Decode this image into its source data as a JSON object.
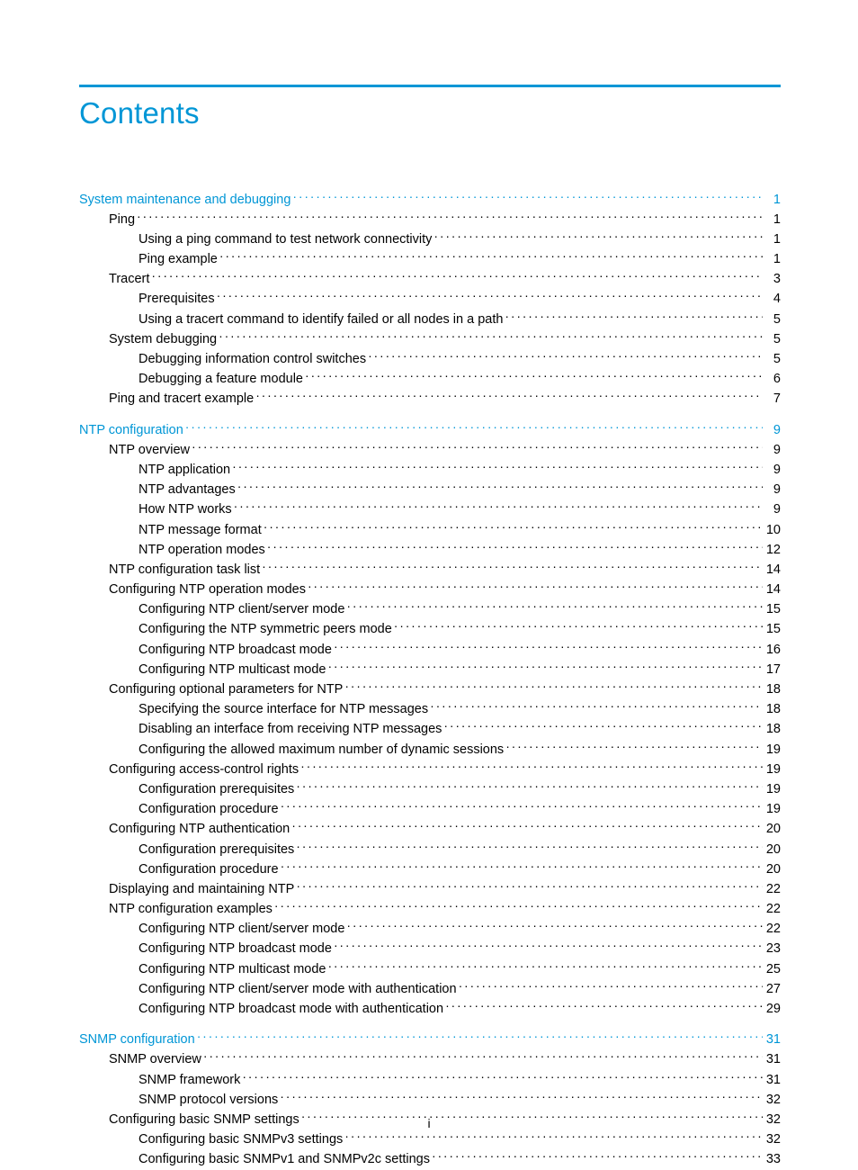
{
  "title": "Contents",
  "footer_page": "i",
  "top_rule_color": "#0096d6",
  "link_color": "#0096d6",
  "text_color": "#000000",
  "background_color": "#ffffff",
  "title_fontsize": 33,
  "body_fontsize": 14.5,
  "sections": [
    {
      "heading": {
        "label": "System maintenance and debugging",
        "page": "1",
        "link": true
      },
      "entries": [
        {
          "indent": 1,
          "label": "Ping",
          "page": "1"
        },
        {
          "indent": 2,
          "label": "Using a ping command to test network connectivity",
          "page": "1"
        },
        {
          "indent": 2,
          "label": "Ping example",
          "page": "1"
        },
        {
          "indent": 1,
          "label": "Tracert",
          "page": "3"
        },
        {
          "indent": 2,
          "label": "Prerequisites",
          "page": "4"
        },
        {
          "indent": 2,
          "label": "Using a tracert command to identify failed or all nodes in a path",
          "page": "5"
        },
        {
          "indent": 1,
          "label": "System debugging",
          "page": "5"
        },
        {
          "indent": 2,
          "label": "Debugging information control switches",
          "page": "5"
        },
        {
          "indent": 2,
          "label": "Debugging a feature module",
          "page": "6"
        },
        {
          "indent": 1,
          "label": "Ping and tracert example",
          "page": "7"
        }
      ]
    },
    {
      "heading": {
        "label": "NTP configuration",
        "page": "9",
        "link": true
      },
      "entries": [
        {
          "indent": 1,
          "label": "NTP overview",
          "page": "9"
        },
        {
          "indent": 2,
          "label": "NTP application",
          "page": "9"
        },
        {
          "indent": 2,
          "label": "NTP advantages",
          "page": "9"
        },
        {
          "indent": 2,
          "label": "How NTP works",
          "page": "9"
        },
        {
          "indent": 2,
          "label": "NTP message format",
          "page": "10"
        },
        {
          "indent": 2,
          "label": "NTP operation modes",
          "page": "12"
        },
        {
          "indent": 1,
          "label": "NTP configuration task list",
          "page": "14"
        },
        {
          "indent": 1,
          "label": "Configuring NTP operation modes",
          "page": "14"
        },
        {
          "indent": 2,
          "label": "Configuring NTP client/server mode",
          "page": "15"
        },
        {
          "indent": 2,
          "label": "Configuring the NTP symmetric peers mode",
          "page": "15"
        },
        {
          "indent": 2,
          "label": "Configuring NTP broadcast mode",
          "page": "16"
        },
        {
          "indent": 2,
          "label": "Configuring NTP multicast mode",
          "page": "17"
        },
        {
          "indent": 1,
          "label": "Configuring optional parameters for NTP",
          "page": "18"
        },
        {
          "indent": 2,
          "label": "Specifying the source interface for NTP messages",
          "page": "18"
        },
        {
          "indent": 2,
          "label": "Disabling an interface from receiving NTP messages",
          "page": "18"
        },
        {
          "indent": 2,
          "label": "Configuring the allowed maximum number of dynamic sessions",
          "page": "19"
        },
        {
          "indent": 1,
          "label": "Configuring access-control rights",
          "page": "19"
        },
        {
          "indent": 2,
          "label": "Configuration prerequisites",
          "page": "19"
        },
        {
          "indent": 2,
          "label": "Configuration procedure",
          "page": "19"
        },
        {
          "indent": 1,
          "label": "Configuring NTP authentication",
          "page": "20"
        },
        {
          "indent": 2,
          "label": "Configuration prerequisites",
          "page": "20"
        },
        {
          "indent": 2,
          "label": "Configuration procedure",
          "page": "20"
        },
        {
          "indent": 1,
          "label": "Displaying and maintaining NTP",
          "page": "22"
        },
        {
          "indent": 1,
          "label": "NTP configuration examples",
          "page": "22"
        },
        {
          "indent": 2,
          "label": "Configuring NTP client/server mode",
          "page": "22"
        },
        {
          "indent": 2,
          "label": "Configuring NTP broadcast mode",
          "page": "23"
        },
        {
          "indent": 2,
          "label": "Configuring NTP multicast mode",
          "page": "25"
        },
        {
          "indent": 2,
          "label": "Configuring NTP client/server mode with authentication",
          "page": "27"
        },
        {
          "indent": 2,
          "label": "Configuring NTP broadcast mode with authentication",
          "page": "29"
        }
      ]
    },
    {
      "heading": {
        "label": "SNMP configuration",
        "page": "31",
        "link": true
      },
      "entries": [
        {
          "indent": 1,
          "label": "SNMP overview",
          "page": "31"
        },
        {
          "indent": 2,
          "label": "SNMP framework",
          "page": "31"
        },
        {
          "indent": 2,
          "label": "SNMP protocol versions",
          "page": "32"
        },
        {
          "indent": 1,
          "label": "Configuring basic SNMP settings",
          "page": "32"
        },
        {
          "indent": 2,
          "label": "Configuring basic SNMPv3 settings",
          "page": "32"
        },
        {
          "indent": 2,
          "label": "Configuring basic SNMPv1 and SNMPv2c settings",
          "page": "33"
        }
      ]
    }
  ]
}
